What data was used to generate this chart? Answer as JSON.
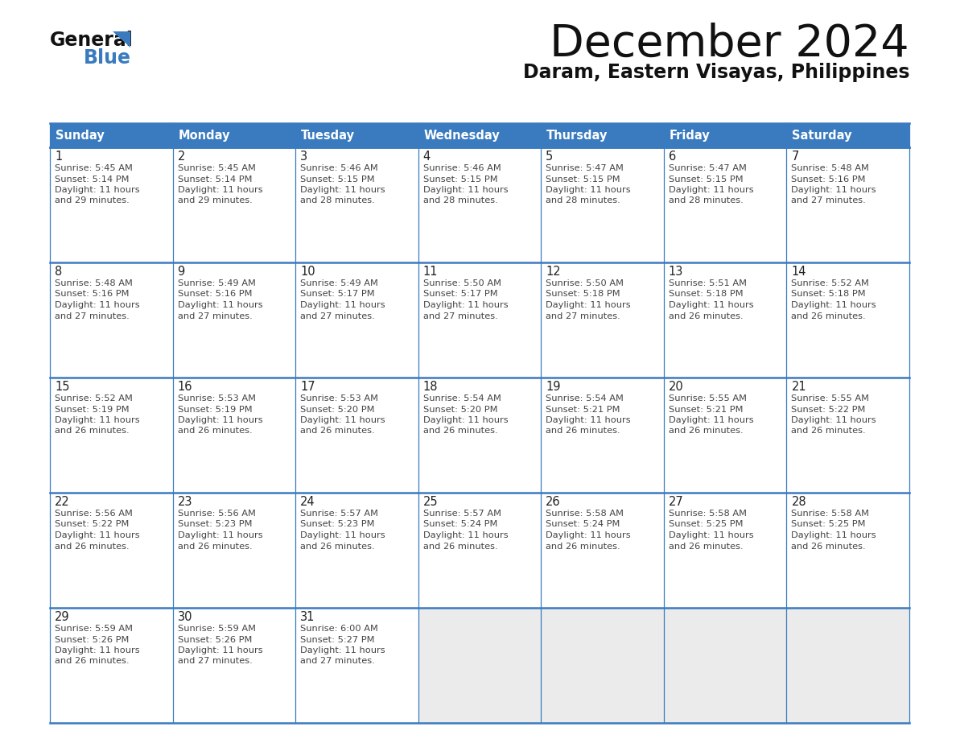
{
  "title": "December 2024",
  "subtitle": "Daram, Eastern Visayas, Philippines",
  "header_color": "#3a7bbf",
  "header_text_color": "#ffffff",
  "cell_bg_white": "#ffffff",
  "cell_bg_gray": "#ebebeb",
  "border_color": "#3a7bbf",
  "text_color": "#444444",
  "days_of_week": [
    "Sunday",
    "Monday",
    "Tuesday",
    "Wednesday",
    "Thursday",
    "Friday",
    "Saturday"
  ],
  "weeks": [
    [
      {
        "day": 1,
        "sunrise": "5:45 AM",
        "sunset": "5:14 PM",
        "daylight_hours": 11,
        "daylight_minutes": 29
      },
      {
        "day": 2,
        "sunrise": "5:45 AM",
        "sunset": "5:14 PM",
        "daylight_hours": 11,
        "daylight_minutes": 29
      },
      {
        "day": 3,
        "sunrise": "5:46 AM",
        "sunset": "5:15 PM",
        "daylight_hours": 11,
        "daylight_minutes": 28
      },
      {
        "day": 4,
        "sunrise": "5:46 AM",
        "sunset": "5:15 PM",
        "daylight_hours": 11,
        "daylight_minutes": 28
      },
      {
        "day": 5,
        "sunrise": "5:47 AM",
        "sunset": "5:15 PM",
        "daylight_hours": 11,
        "daylight_minutes": 28
      },
      {
        "day": 6,
        "sunrise": "5:47 AM",
        "sunset": "5:15 PM",
        "daylight_hours": 11,
        "daylight_minutes": 28
      },
      {
        "day": 7,
        "sunrise": "5:48 AM",
        "sunset": "5:16 PM",
        "daylight_hours": 11,
        "daylight_minutes": 27
      }
    ],
    [
      {
        "day": 8,
        "sunrise": "5:48 AM",
        "sunset": "5:16 PM",
        "daylight_hours": 11,
        "daylight_minutes": 27
      },
      {
        "day": 9,
        "sunrise": "5:49 AM",
        "sunset": "5:16 PM",
        "daylight_hours": 11,
        "daylight_minutes": 27
      },
      {
        "day": 10,
        "sunrise": "5:49 AM",
        "sunset": "5:17 PM",
        "daylight_hours": 11,
        "daylight_minutes": 27
      },
      {
        "day": 11,
        "sunrise": "5:50 AM",
        "sunset": "5:17 PM",
        "daylight_hours": 11,
        "daylight_minutes": 27
      },
      {
        "day": 12,
        "sunrise": "5:50 AM",
        "sunset": "5:18 PM",
        "daylight_hours": 11,
        "daylight_minutes": 27
      },
      {
        "day": 13,
        "sunrise": "5:51 AM",
        "sunset": "5:18 PM",
        "daylight_hours": 11,
        "daylight_minutes": 26
      },
      {
        "day": 14,
        "sunrise": "5:52 AM",
        "sunset": "5:18 PM",
        "daylight_hours": 11,
        "daylight_minutes": 26
      }
    ],
    [
      {
        "day": 15,
        "sunrise": "5:52 AM",
        "sunset": "5:19 PM",
        "daylight_hours": 11,
        "daylight_minutes": 26
      },
      {
        "day": 16,
        "sunrise": "5:53 AM",
        "sunset": "5:19 PM",
        "daylight_hours": 11,
        "daylight_minutes": 26
      },
      {
        "day": 17,
        "sunrise": "5:53 AM",
        "sunset": "5:20 PM",
        "daylight_hours": 11,
        "daylight_minutes": 26
      },
      {
        "day": 18,
        "sunrise": "5:54 AM",
        "sunset": "5:20 PM",
        "daylight_hours": 11,
        "daylight_minutes": 26
      },
      {
        "day": 19,
        "sunrise": "5:54 AM",
        "sunset": "5:21 PM",
        "daylight_hours": 11,
        "daylight_minutes": 26
      },
      {
        "day": 20,
        "sunrise": "5:55 AM",
        "sunset": "5:21 PM",
        "daylight_hours": 11,
        "daylight_minutes": 26
      },
      {
        "day": 21,
        "sunrise": "5:55 AM",
        "sunset": "5:22 PM",
        "daylight_hours": 11,
        "daylight_minutes": 26
      }
    ],
    [
      {
        "day": 22,
        "sunrise": "5:56 AM",
        "sunset": "5:22 PM",
        "daylight_hours": 11,
        "daylight_minutes": 26
      },
      {
        "day": 23,
        "sunrise": "5:56 AM",
        "sunset": "5:23 PM",
        "daylight_hours": 11,
        "daylight_minutes": 26
      },
      {
        "day": 24,
        "sunrise": "5:57 AM",
        "sunset": "5:23 PM",
        "daylight_hours": 11,
        "daylight_minutes": 26
      },
      {
        "day": 25,
        "sunrise": "5:57 AM",
        "sunset": "5:24 PM",
        "daylight_hours": 11,
        "daylight_minutes": 26
      },
      {
        "day": 26,
        "sunrise": "5:58 AM",
        "sunset": "5:24 PM",
        "daylight_hours": 11,
        "daylight_minutes": 26
      },
      {
        "day": 27,
        "sunrise": "5:58 AM",
        "sunset": "5:25 PM",
        "daylight_hours": 11,
        "daylight_minutes": 26
      },
      {
        "day": 28,
        "sunrise": "5:58 AM",
        "sunset": "5:25 PM",
        "daylight_hours": 11,
        "daylight_minutes": 26
      }
    ],
    [
      {
        "day": 29,
        "sunrise": "5:59 AM",
        "sunset": "5:26 PM",
        "daylight_hours": 11,
        "daylight_minutes": 26
      },
      {
        "day": 30,
        "sunrise": "5:59 AM",
        "sunset": "5:26 PM",
        "daylight_hours": 11,
        "daylight_minutes": 27
      },
      {
        "day": 31,
        "sunrise": "6:00 AM",
        "sunset": "5:27 PM",
        "daylight_hours": 11,
        "daylight_minutes": 27
      },
      null,
      null,
      null,
      null
    ]
  ]
}
